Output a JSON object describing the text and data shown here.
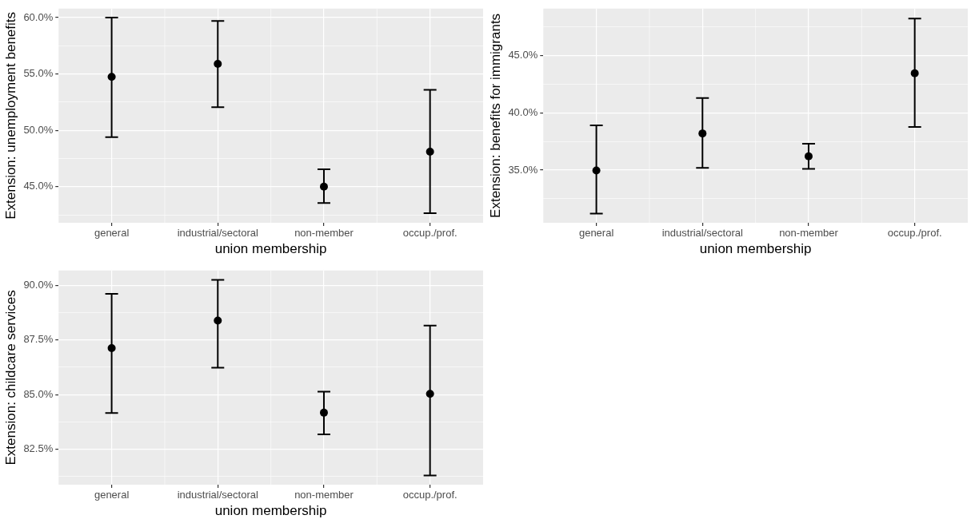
{
  "chart_data": [
    {
      "type": "scatter",
      "categories": [
        "general",
        "industrial/sectoral",
        "non-member",
        "occup./prof."
      ],
      "xlabel": "union membership",
      "ylabel": "Extension: unemployment benefits",
      "color": "#000000",
      "marker": "circle",
      "grid": true,
      "values": [
        54.75,
        55.9,
        45.0,
        48.1
      ],
      "errors": [
        [
          49.4,
          60.0
        ],
        [
          52.05,
          59.7
        ],
        [
          43.55,
          46.55
        ],
        [
          42.65,
          53.6
        ]
      ],
      "ylim": [
        41.8,
        60.8
      ],
      "yticks": [
        {
          "value": 42.5,
          "label": null
        },
        {
          "value": 45,
          "label": "45.0%"
        },
        {
          "value": 47.5,
          "label": null
        },
        {
          "value": 50,
          "label": "50.0%"
        },
        {
          "value": 52.5,
          "label": null
        },
        {
          "value": 55,
          "label": "55.0%"
        },
        {
          "value": 57.5,
          "label": null
        },
        {
          "value": 60,
          "label": "60.0%"
        }
      ]
    },
    {
      "type": "scatter",
      "categories": [
        "general",
        "industrial/sectoral",
        "non-member",
        "occup./prof."
      ],
      "xlabel": "union membership",
      "ylabel": "Extension: benefits for immigrants",
      "color": "#000000",
      "marker": "circle",
      "grid": true,
      "values": [
        34.97,
        38.2,
        36.2,
        43.45
      ],
      "errors": [
        [
          31.2,
          38.9
        ],
        [
          35.2,
          41.3
        ],
        [
          35.1,
          37.3
        ],
        [
          38.76,
          48.24
        ]
      ],
      "ylim": [
        30.4,
        49.1
      ],
      "yticks": [
        {
          "value": 32.5,
          "label": null
        },
        {
          "value": 35,
          "label": "35.0%"
        },
        {
          "value": 37.5,
          "label": null
        },
        {
          "value": 40,
          "label": "40.0%"
        },
        {
          "value": 42.5,
          "label": null
        },
        {
          "value": 45,
          "label": "45.0%"
        },
        {
          "value": 47.5,
          "label": null
        }
      ]
    },
    {
      "type": "scatter",
      "categories": [
        "general",
        "industrial/sectoral",
        "non-member",
        "occup./prof."
      ],
      "xlabel": "union membership",
      "ylabel": "Extension: childcare services",
      "color": "#000000",
      "marker": "circle",
      "grid": true,
      "values": [
        87.12,
        88.38,
        84.17,
        85.03
      ],
      "errors": [
        [
          84.16,
          89.6
        ],
        [
          86.23,
          90.24
        ],
        [
          83.18,
          85.13
        ],
        [
          81.3,
          88.15
        ]
      ],
      "ylim": [
        80.88,
        90.67
      ],
      "yticks": [
        {
          "value": 81.25,
          "label": null
        },
        {
          "value": 82.5,
          "label": "82.5%"
        },
        {
          "value": 83.75,
          "label": null
        },
        {
          "value": 85,
          "label": "85.0%"
        },
        {
          "value": 86.25,
          "label": null
        },
        {
          "value": 87.5,
          "label": "87.5%"
        },
        {
          "value": 88.75,
          "label": null
        },
        {
          "value": 90,
          "label": "90.0%"
        }
      ]
    }
  ]
}
